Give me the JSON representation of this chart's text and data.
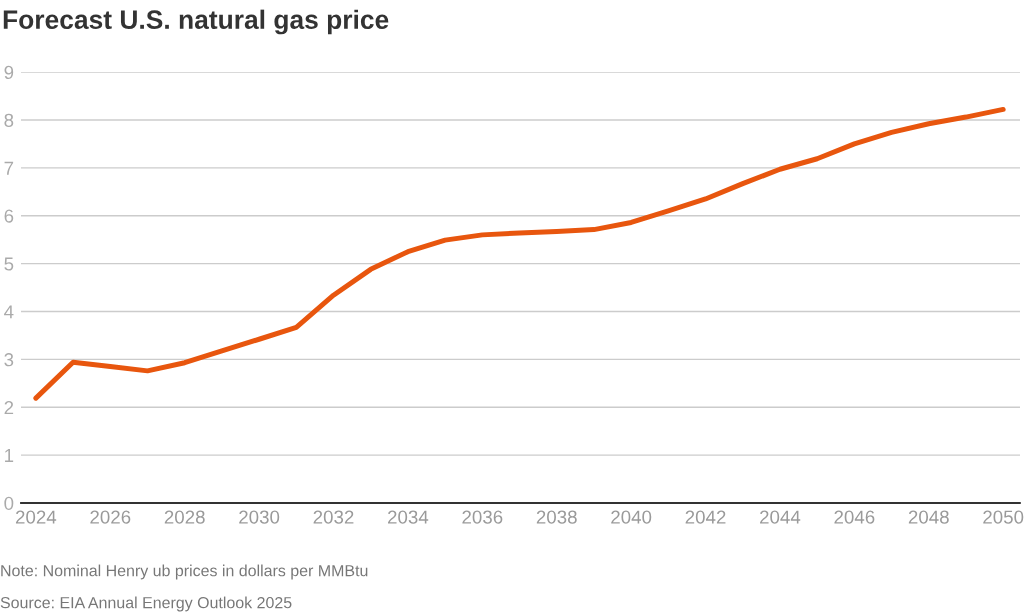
{
  "chart_data": {
    "type": "line",
    "title": "Forecast U.S. natural gas price",
    "x": [
      2024,
      2025,
      2026,
      2027,
      2028,
      2029,
      2030,
      2031,
      2032,
      2033,
      2034,
      2035,
      2036,
      2037,
      2038,
      2039,
      2040,
      2041,
      2042,
      2043,
      2044,
      2045,
      2046,
      2047,
      2048,
      2049,
      2050
    ],
    "series": [
      {
        "color": "#e8560e",
        "values": [
          2.19,
          2.94,
          2.85,
          2.76,
          2.93,
          3.18,
          3.42,
          3.67,
          4.34,
          4.88,
          5.25,
          5.49,
          5.6,
          5.64,
          5.67,
          5.71,
          5.86,
          6.1,
          6.35,
          6.67,
          6.97,
          7.19,
          7.5,
          7.74,
          7.92,
          8.06,
          8.22
        ]
      }
    ],
    "xlim": [
      2023.6,
      2050.45
    ],
    "xticks": [
      2024,
      2026,
      2028,
      2030,
      2032,
      2034,
      2036,
      2038,
      2040,
      2042,
      2044,
      2046,
      2048,
      2050
    ],
    "ylim": [
      0,
      9
    ],
    "yticks": [
      0,
      1,
      2,
      3,
      4,
      5,
      6,
      7,
      8,
      9
    ],
    "grid": "y",
    "annotations": [
      "Note: Nominal Henry ub prices in dollars per MMBtu",
      "Source: EIA Annual Energy Outlook 2025"
    ]
  }
}
